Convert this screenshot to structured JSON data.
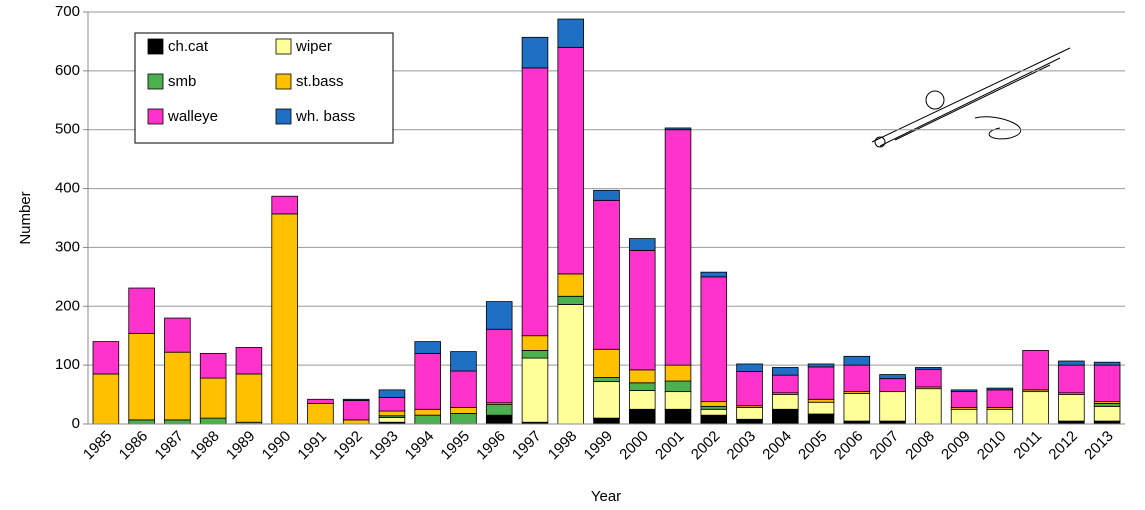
{
  "chart_data": {
    "type": "stacked-bar",
    "x_label": "Year",
    "y_label": "Number",
    "categories": [
      "1985",
      "1986",
      "1987",
      "1988",
      "1989",
      "1990",
      "1991",
      "1992",
      "1993",
      "1994",
      "1995",
      "1996",
      "1997",
      "1998",
      "1999",
      "2000",
      "2001",
      "2002",
      "2003",
      "2004",
      "2005",
      "2006",
      "2007",
      "2008",
      "2009",
      "2010",
      "2011",
      "2012",
      "2013"
    ],
    "series": [
      {
        "name": "ch.cat",
        "color": "#000000",
        "values": [
          0,
          0,
          0,
          0,
          0,
          0,
          0,
          0,
          3,
          0,
          0,
          15,
          3,
          0,
          10,
          25,
          25,
          15,
          8,
          25,
          17,
          5,
          5,
          0,
          0,
          0,
          0,
          5,
          5
        ]
      },
      {
        "name": "wiper",
        "color": "#ffff99",
        "values": [
          0,
          0,
          0,
          0,
          0,
          0,
          0,
          0,
          8,
          0,
          0,
          0,
          109,
          203,
          62,
          32,
          30,
          10,
          20,
          25,
          20,
          47,
          50,
          60,
          25,
          25,
          55,
          45,
          25
        ]
      },
      {
        "name": "smb",
        "color": "#4caf50",
        "values": [
          0,
          7,
          7,
          10,
          3,
          0,
          0,
          0,
          3,
          15,
          18,
          18,
          13,
          14,
          7,
          13,
          18,
          5,
          0,
          0,
          0,
          0,
          0,
          0,
          0,
          0,
          0,
          0,
          5
        ]
      },
      {
        "name": "st.bass",
        "color": "#ffc000",
        "values": [
          85,
          147,
          115,
          68,
          82,
          357,
          35,
          7,
          8,
          10,
          10,
          3,
          25,
          38,
          48,
          22,
          27,
          8,
          3,
          3,
          5,
          3,
          0,
          3,
          3,
          3,
          3,
          3,
          3
        ]
      },
      {
        "name": "walleye",
        "color": "#ff33cc",
        "values": [
          55,
          77,
          58,
          42,
          45,
          30,
          7,
          33,
          23,
          95,
          62,
          125,
          455,
          385,
          253,
          203,
          400,
          212,
          58,
          30,
          55,
          45,
          22,
          30,
          27,
          30,
          67,
          47,
          62
        ]
      },
      {
        "name": "wh. bass",
        "color": "#1f6fc5",
        "values": [
          0,
          0,
          0,
          0,
          0,
          0,
          0,
          2,
          13,
          20,
          33,
          47,
          52,
          48,
          17,
          20,
          3,
          8,
          13,
          13,
          5,
          15,
          7,
          3,
          3,
          3,
          0,
          7,
          5
        ]
      }
    ],
    "ylim": [
      0,
      700
    ],
    "yticks": [
      0,
      100,
      200,
      300,
      400,
      500,
      600,
      700
    ],
    "grid": true
  }
}
